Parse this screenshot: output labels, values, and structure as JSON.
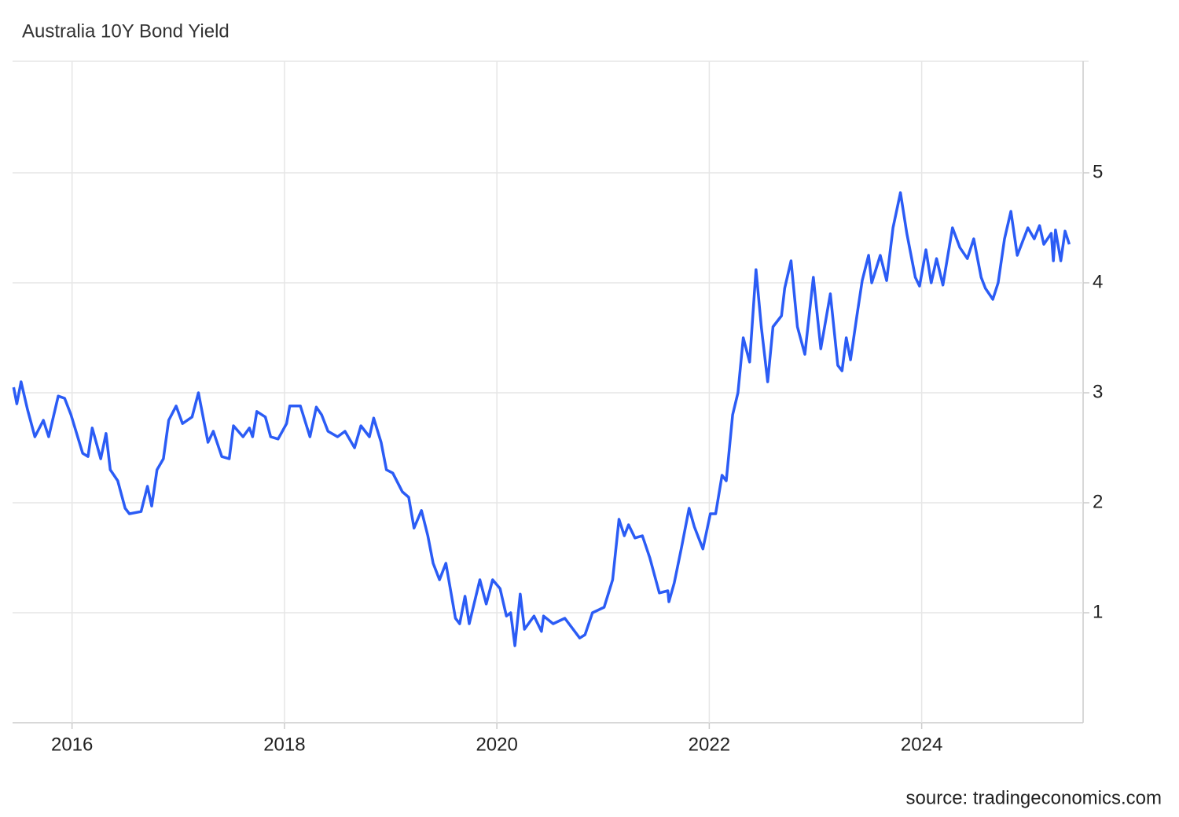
{
  "chart_data": {
    "type": "line",
    "title": "Australia 10Y Bond Yield",
    "source": "source: tradingeconomics.com",
    "color": "#2b5cf5",
    "grid": true,
    "xlim": [
      2015.44,
      2025.52
    ],
    "xticks": [
      2016,
      2018,
      2020,
      2022,
      2024
    ],
    "ylim": [
      0,
      6
    ],
    "yticks": [
      1,
      2,
      3,
      4,
      5
    ],
    "x": [
      2015.45,
      2015.48,
      2015.52,
      2015.58,
      2015.65,
      2015.73,
      2015.78,
      2015.87,
      2015.93,
      2015.99,
      2016.1,
      2016.15,
      2016.19,
      2016.27,
      2016.32,
      2016.36,
      2016.43,
      2016.5,
      2016.54,
      2016.65,
      2016.71,
      2016.75,
      2016.8,
      2016.86,
      2016.91,
      2016.98,
      2017.04,
      2017.13,
      2017.19,
      2017.28,
      2017.33,
      2017.41,
      2017.48,
      2017.52,
      2017.61,
      2017.67,
      2017.7,
      2017.74,
      2017.82,
      2017.87,
      2017.94,
      2018.02,
      2018.05,
      2018.15,
      2018.24,
      2018.3,
      2018.35,
      2018.41,
      2018.5,
      2018.57,
      2018.66,
      2018.72,
      2018.8,
      2018.84,
      2018.91,
      2018.96,
      2019.02,
      2019.11,
      2019.17,
      2019.22,
      2019.29,
      2019.35,
      2019.4,
      2019.46,
      2019.52,
      2019.61,
      2019.65,
      2019.7,
      2019.74,
      2019.79,
      2019.84,
      2019.9,
      2019.96,
      2020.03,
      2020.09,
      2020.13,
      2020.17,
      2020.22,
      2020.26,
      2020.35,
      2020.42,
      2020.44,
      2020.53,
      2020.64,
      2020.78,
      2020.83,
      2020.9,
      2021.01,
      2021.09,
      2021.15,
      2021.2,
      2021.24,
      2021.3,
      2021.37,
      2021.44,
      2021.53,
      2021.61,
      2021.62,
      2021.67,
      2021.74,
      2021.81,
      2021.86,
      2021.94,
      2022.01,
      2022.06,
      2022.12,
      2022.16,
      2022.22,
      2022.27,
      2022.32,
      2022.38,
      2022.44,
      2022.49,
      2022.55,
      2022.6,
      2022.68,
      2022.71,
      2022.77,
      2022.83,
      2022.9,
      2022.98,
      2023.05,
      2023.14,
      2023.21,
      2023.25,
      2023.29,
      2023.33,
      2023.39,
      2023.44,
      2023.5,
      2023.53,
      2023.61,
      2023.67,
      2023.73,
      2023.8,
      2023.86,
      2023.94,
      2023.98,
      2024.04,
      2024.09,
      2024.14,
      2024.2,
      2024.29,
      2024.36,
      2024.43,
      2024.49,
      2024.56,
      2024.6,
      2024.67,
      2024.72,
      2024.78,
      2024.84,
      2024.9,
      2024.96,
      2025.0,
      2025.06,
      2025.11,
      2025.15,
      2025.22,
      2025.24,
      2025.26,
      2025.31,
      2025.35,
      2025.39
    ],
    "values": [
      3.05,
      2.9,
      3.1,
      2.85,
      2.6,
      2.75,
      2.6,
      2.97,
      2.95,
      2.8,
      2.45,
      2.42,
      2.68,
      2.4,
      2.63,
      2.3,
      2.2,
      1.95,
      1.9,
      1.92,
      2.15,
      1.97,
      2.3,
      2.4,
      2.75,
      2.88,
      2.72,
      2.78,
      3.0,
      2.55,
      2.65,
      2.42,
      2.4,
      2.7,
      2.6,
      2.68,
      2.6,
      2.83,
      2.78,
      2.6,
      2.58,
      2.72,
      2.88,
      2.88,
      2.6,
      2.87,
      2.8,
      2.65,
      2.6,
      2.65,
      2.5,
      2.7,
      2.6,
      2.77,
      2.55,
      2.3,
      2.27,
      2.1,
      2.05,
      1.77,
      1.93,
      1.7,
      1.45,
      1.3,
      1.45,
      0.95,
      0.9,
      1.15,
      0.9,
      1.1,
      1.3,
      1.08,
      1.3,
      1.22,
      0.97,
      1.0,
      0.7,
      1.17,
      0.85,
      0.97,
      0.83,
      0.97,
      0.9,
      0.95,
      0.77,
      0.8,
      1.0,
      1.05,
      1.3,
      1.85,
      1.7,
      1.8,
      1.68,
      1.7,
      1.5,
      1.18,
      1.2,
      1.1,
      1.27,
      1.6,
      1.95,
      1.78,
      1.58,
      1.9,
      1.9,
      2.25,
      2.2,
      2.8,
      3.0,
      3.5,
      3.28,
      4.12,
      3.6,
      3.1,
      3.6,
      3.7,
      3.95,
      4.2,
      3.6,
      3.35,
      4.05,
      3.4,
      3.9,
      3.25,
      3.2,
      3.5,
      3.3,
      3.7,
      4.02,
      4.25,
      4.0,
      4.25,
      4.02,
      4.5,
      4.82,
      4.45,
      4.05,
      3.97,
      4.3,
      4.0,
      4.22,
      3.98,
      4.5,
      4.32,
      4.22,
      4.4,
      4.05,
      3.95,
      3.85,
      4.0,
      4.4,
      4.65,
      4.25,
      4.4,
      4.5,
      4.4,
      4.52,
      4.35,
      4.45,
      4.2,
      4.48,
      4.2,
      4.47,
      4.35
    ]
  }
}
